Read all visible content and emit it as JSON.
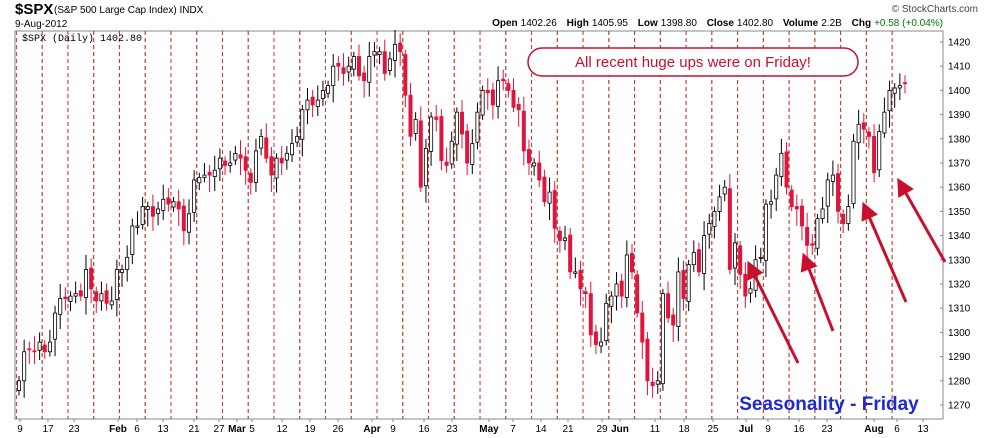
{
  "header": {
    "symbol": "$SPX",
    "name": "(S&P 500 Large Cap Index) INDX",
    "date": "9-Aug-2012",
    "brand": "© StockCharts.com",
    "open_label": "Open",
    "open": "1402.26",
    "high_label": "High",
    "high": "1405.95",
    "low_label": "Low",
    "low": "1398.80",
    "close_label": "Close",
    "close": "1402.80",
    "volume_label": "Volume",
    "volume": "2.2B",
    "chg_label": "Chg",
    "chg": "+0.58 (+0.04%)"
  },
  "chart_data": {
    "type": "candlestick",
    "series_label": "$SPX (Daily) 1402.80",
    "ylim": [
      1263,
      1425
    ],
    "y_ticks": [
      1270,
      1280,
      1290,
      1300,
      1310,
      1320,
      1330,
      1340,
      1350,
      1360,
      1370,
      1380,
      1390,
      1400,
      1410,
      1420
    ],
    "x_ticks": [
      "9",
      "17",
      "23",
      "Feb",
      "6",
      "13",
      "21",
      "27",
      "Mar",
      "5",
      "12",
      "19",
      "26",
      "Apr",
      "9",
      "16",
      "23",
      "May",
      "7",
      "14",
      "21",
      "29",
      "Jun",
      "11",
      "18",
      "25",
      "Jul",
      "9",
      "16",
      "23",
      "Aug",
      "6",
      "13"
    ],
    "closes": [
      1280,
      1292,
      1293,
      1292,
      1296,
      1292,
      1296,
      1308,
      1314,
      1314,
      1315,
      1316,
      1315,
      1326,
      1318,
      1313,
      1316,
      1312,
      1313,
      1326,
      1326,
      1331,
      1344,
      1344,
      1352,
      1352,
      1348,
      1351,
      1355,
      1353,
      1354,
      1351,
      1342,
      1349,
      1363,
      1364,
      1365,
      1365,
      1367,
      1372,
      1369,
      1370,
      1374,
      1372,
      1367,
      1362,
      1375,
      1381,
      1372,
      1365,
      1372,
      1370,
      1374,
      1378,
      1381,
      1392,
      1396,
      1394,
      1396,
      1400,
      1402,
      1410,
      1410,
      1407,
      1410,
      1414,
      1406,
      1404,
      1414,
      1416,
      1416,
      1407,
      1413,
      1419,
      1416,
      1398,
      1381,
      1388,
      1360,
      1376,
      1389,
      1388,
      1371,
      1369,
      1379,
      1391,
      1382,
      1370,
      1378,
      1391,
      1400,
      1399,
      1394,
      1404,
      1404,
      1400,
      1393,
      1392,
      1375,
      1370,
      1370,
      1363,
      1354,
      1358,
      1343,
      1338,
      1339,
      1325,
      1325,
      1318,
      1316,
      1299,
      1295,
      1296,
      1312,
      1315,
      1320,
      1315,
      1332,
      1325,
      1308,
      1296,
      1280,
      1278,
      1280,
      1316,
      1306,
      1303,
      1325,
      1314,
      1328,
      1333,
      1325,
      1340,
      1345,
      1350,
      1356,
      1360,
      1326,
      1337,
      1324,
      1315,
      1318,
      1330,
      1331,
      1353,
      1354,
      1365,
      1374,
      1360,
      1352,
      1351,
      1344,
      1336,
      1336,
      1347,
      1351,
      1363,
      1365,
      1350,
      1345,
      1352,
      1379,
      1386,
      1384,
      1381,
      1366,
      1383,
      1391,
      1400,
      1401,
      1402,
      1402.8
    ],
    "annotation": "All recent huge ups were on Friday!",
    "caption": "Seasonality - Friday",
    "colors": {
      "up": "#ffffff",
      "down": "#e0143c",
      "friday_line": "#2a9a2a",
      "monday_line": "#dc3232",
      "arrow": "#c8102e",
      "caption": "#1d2ad0"
    }
  }
}
